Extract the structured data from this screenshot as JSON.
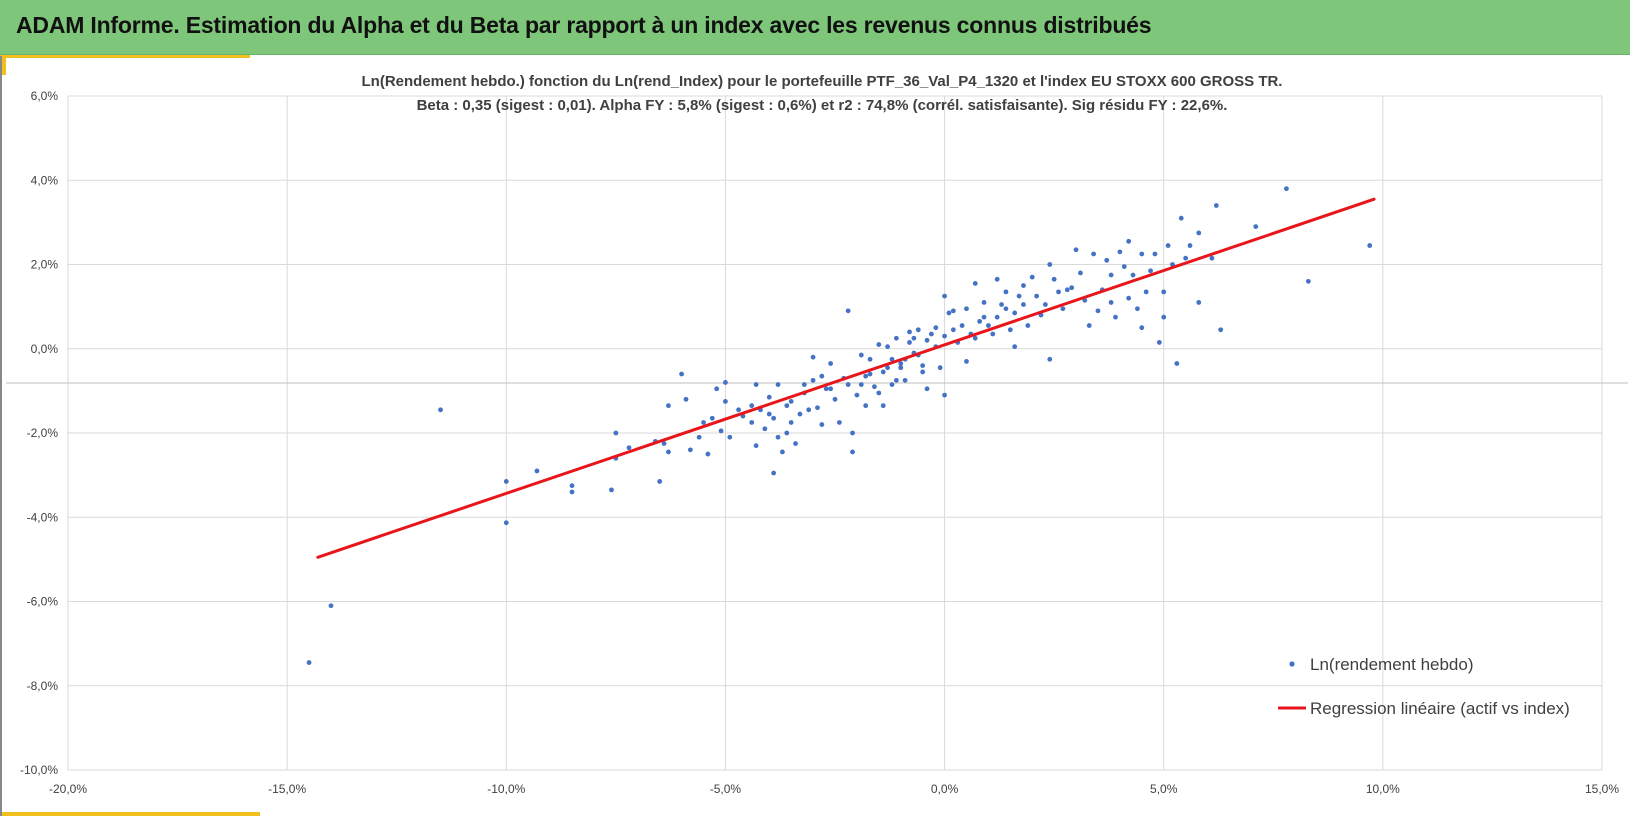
{
  "header": {
    "title": "ADAM Informe. Estimation du Alpha et du Beta par rapport à un index avec les revenus connus distribués"
  },
  "colors": {
    "header_bg": "#7dc67a",
    "accent": "#f2c01e",
    "points": "#4472c4",
    "regression": "#e8161b",
    "grid": "#d9d9d9"
  },
  "chart_data": {
    "type": "scatter",
    "title": "Ln(Rendement hebdo.) fonction du Ln(rend_Index) pour le portefeuille PTF_36_Val_P4_1320 et l'index EU STOXX 600 GROSS TR.",
    "subtitle": "Beta : 0,35 (sigest : 0,01). Alpha FY : 5,8% (sigest : 0,6%) et r2 : 74,8% (corrél. satisfaisante). Sig résidu FY : 22,6%.",
    "xlabel": "",
    "ylabel": "",
    "xlim": [
      -0.2,
      0.15
    ],
    "ylim": [
      -0.1,
      0.06
    ],
    "grid": true,
    "legend_position": "bottom-right",
    "x_ticks": [
      "-20,0%",
      "-15,0%",
      "-10,0%",
      "-5,0%",
      "0,0%",
      "5,0%",
      "10,0%",
      "15,0%"
    ],
    "y_ticks": [
      "6,0%",
      "4,0%",
      "2,0%",
      "0,0%",
      "-2,0%",
      "-4,0%",
      "-6,0%",
      "-8,0%",
      "-10,0%"
    ],
    "series": [
      {
        "name": "Ln(rendement hebdo)",
        "kind": "scatter",
        "points": [
          [
            -0.145,
            -0.0745
          ],
          [
            -0.14,
            -0.061
          ],
          [
            -0.115,
            -0.0145
          ],
          [
            -0.1,
            -0.0413
          ],
          [
            -0.1,
            -0.0315
          ],
          [
            -0.093,
            -0.029
          ],
          [
            -0.085,
            -0.034
          ],
          [
            -0.085,
            -0.0325
          ],
          [
            -0.076,
            -0.0335
          ],
          [
            -0.075,
            -0.026
          ],
          [
            -0.075,
            -0.02
          ],
          [
            -0.072,
            -0.0235
          ],
          [
            -0.066,
            -0.022
          ],
          [
            -0.065,
            -0.0315
          ],
          [
            -0.064,
            -0.0225
          ],
          [
            -0.063,
            -0.0245
          ],
          [
            -0.063,
            -0.0135
          ],
          [
            -0.06,
            -0.006
          ],
          [
            -0.059,
            -0.012
          ],
          [
            -0.058,
            -0.024
          ],
          [
            -0.056,
            -0.021
          ],
          [
            -0.055,
            -0.0175
          ],
          [
            -0.054,
            -0.025
          ],
          [
            -0.053,
            -0.0165
          ],
          [
            -0.052,
            -0.0095
          ],
          [
            -0.051,
            -0.0195
          ],
          [
            -0.05,
            -0.0125
          ],
          [
            -0.05,
            -0.008
          ],
          [
            -0.049,
            -0.021
          ],
          [
            -0.047,
            -0.0145
          ],
          [
            -0.046,
            -0.016
          ],
          [
            -0.044,
            -0.0135
          ],
          [
            -0.043,
            -0.0085
          ],
          [
            -0.043,
            -0.023
          ],
          [
            -0.042,
            -0.0145
          ],
          [
            -0.041,
            -0.019
          ],
          [
            -0.04,
            -0.0115
          ],
          [
            -0.039,
            -0.0165
          ],
          [
            -0.039,
            -0.0295
          ],
          [
            -0.038,
            -0.021
          ],
          [
            -0.038,
            -0.0085
          ],
          [
            -0.037,
            -0.0245
          ],
          [
            -0.036,
            -0.02
          ],
          [
            -0.035,
            -0.0175
          ],
          [
            -0.035,
            -0.0125
          ],
          [
            -0.034,
            -0.0225
          ],
          [
            -0.033,
            -0.0155
          ],
          [
            -0.032,
            -0.0105
          ],
          [
            -0.031,
            -0.0145
          ],
          [
            -0.03,
            -0.0075
          ],
          [
            -0.03,
            -0.002
          ],
          [
            -0.029,
            -0.014
          ],
          [
            -0.028,
            -0.018
          ],
          [
            -0.027,
            -0.0095
          ],
          [
            -0.026,
            -0.0035
          ],
          [
            -0.025,
            -0.012
          ],
          [
            -0.024,
            -0.0175
          ],
          [
            -0.023,
            -0.007
          ],
          [
            -0.022,
            0.009
          ],
          [
            -0.021,
            -0.02
          ],
          [
            -0.021,
            -0.0245
          ],
          [
            -0.02,
            -0.011
          ],
          [
            -0.019,
            -0.0015
          ],
          [
            -0.018,
            -0.0135
          ],
          [
            -0.017,
            -0.006
          ],
          [
            -0.016,
            -0.009
          ],
          [
            -0.015,
            0.001
          ],
          [
            -0.014,
            -0.0135
          ],
          [
            -0.013,
            -0.0045
          ],
          [
            -0.012,
            -0.0085
          ],
          [
            -0.011,
            0.0025
          ],
          [
            -0.01,
            -0.0035
          ],
          [
            -0.009,
            -0.0075
          ],
          [
            -0.008,
            0.004
          ],
          [
            -0.007,
            -0.001
          ],
          [
            -0.006,
            0.0045
          ],
          [
            -0.005,
            -0.004
          ],
          [
            -0.004,
            -0.0095
          ],
          [
            -0.002,
            0.005
          ],
          [
            0.0,
            -0.011
          ],
          [
            0.0,
            0.0125
          ],
          [
            0.002,
            0.009
          ],
          [
            0.005,
            -0.003
          ],
          [
            0.007,
            0.0155
          ],
          [
            0.009,
            0.011
          ],
          [
            0.012,
            0.0165
          ],
          [
            0.014,
            0.0135
          ],
          [
            0.016,
            0.0005
          ],
          [
            0.018,
            0.015
          ],
          [
            0.02,
            0.017
          ],
          [
            0.022,
            0.008
          ],
          [
            0.024,
            0.02
          ],
          [
            0.024,
            -0.0025
          ],
          [
            0.026,
            0.0135
          ],
          [
            0.028,
            0.014
          ],
          [
            0.03,
            0.0235
          ],
          [
            0.031,
            0.018
          ],
          [
            0.032,
            0.0115
          ],
          [
            0.033,
            0.0055
          ],
          [
            0.034,
            0.0225
          ],
          [
            0.035,
            0.009
          ],
          [
            0.036,
            0.014
          ],
          [
            0.037,
            0.021
          ],
          [
            0.038,
            0.0175
          ],
          [
            0.038,
            0.011
          ],
          [
            0.039,
            0.0075
          ],
          [
            0.04,
            0.023
          ],
          [
            0.041,
            0.0195
          ],
          [
            0.042,
            0.0255
          ],
          [
            0.042,
            0.012
          ],
          [
            0.043,
            0.0175
          ],
          [
            0.044,
            0.0095
          ],
          [
            0.045,
            0.0225
          ],
          [
            0.045,
            0.005
          ],
          [
            0.046,
            0.0135
          ],
          [
            0.047,
            0.0185
          ],
          [
            0.048,
            0.0225
          ],
          [
            0.049,
            0.0015
          ],
          [
            0.05,
            0.0075
          ],
          [
            0.05,
            0.0135
          ],
          [
            0.051,
            0.0245
          ],
          [
            0.052,
            0.02
          ],
          [
            0.053,
            -0.0035
          ],
          [
            0.054,
            0.031
          ],
          [
            0.055,
            0.0215
          ],
          [
            0.056,
            0.0245
          ],
          [
            0.058,
            0.0275
          ],
          [
            0.058,
            0.011
          ],
          [
            0.061,
            0.0215
          ],
          [
            0.062,
            0.034
          ],
          [
            0.063,
            0.0045
          ],
          [
            0.071,
            0.029
          ],
          [
            0.078,
            0.038
          ],
          [
            0.083,
            0.016
          ],
          [
            0.097,
            0.0245
          ],
          [
            -0.012,
            -0.0025
          ],
          [
            -0.008,
            0.0015
          ],
          [
            -0.004,
            0.002
          ],
          [
            0.0,
            0.003
          ],
          [
            0.004,
            0.0055
          ],
          [
            0.008,
            0.0065
          ],
          [
            0.012,
            0.0075
          ],
          [
            0.016,
            0.0085
          ],
          [
            0.002,
            0.0045
          ],
          [
            -0.002,
            0.0005
          ],
          [
            0.006,
            0.0035
          ],
          [
            0.01,
            0.0055
          ],
          [
            0.014,
            0.0095
          ],
          [
            0.018,
            0.0105
          ],
          [
            -0.006,
            -0.0015
          ],
          [
            -0.01,
            -0.0045
          ],
          [
            -0.014,
            -0.0055
          ],
          [
            -0.018,
            -0.0065
          ],
          [
            -0.022,
            -0.0085
          ],
          [
            -0.026,
            -0.0095
          ],
          [
            0.001,
            0.0085
          ],
          [
            0.003,
            0.0015
          ],
          [
            0.005,
            0.0095
          ],
          [
            0.007,
            0.0025
          ],
          [
            0.009,
            0.0075
          ],
          [
            0.011,
            0.0035
          ],
          [
            0.013,
            0.0105
          ],
          [
            0.015,
            0.0045
          ],
          [
            0.017,
            0.0125
          ],
          [
            0.019,
            0.0055
          ],
          [
            -0.001,
            -0.0045
          ],
          [
            -0.003,
            0.0035
          ],
          [
            -0.005,
            -0.0055
          ],
          [
            -0.007,
            0.0025
          ],
          [
            -0.009,
            -0.0025
          ],
          [
            -0.011,
            -0.0075
          ],
          [
            -0.013,
            0.0005
          ],
          [
            -0.015,
            -0.0105
          ],
          [
            -0.017,
            -0.0025
          ],
          [
            -0.019,
            -0.0085
          ],
          [
            0.021,
            0.0125
          ],
          [
            0.023,
            0.0105
          ],
          [
            0.025,
            0.0165
          ],
          [
            0.027,
            0.0095
          ],
          [
            0.029,
            0.0145
          ],
          [
            -0.028,
            -0.0065
          ],
          [
            -0.032,
            -0.0085
          ],
          [
            -0.036,
            -0.0135
          ],
          [
            -0.04,
            -0.0155
          ],
          [
            -0.044,
            -0.0175
          ]
        ]
      },
      {
        "name": "Regression linéaire (actif vs index)",
        "kind": "line",
        "points": [
          [
            -0.143,
            -0.0495
          ],
          [
            0.098,
            0.0355
          ]
        ]
      }
    ]
  }
}
